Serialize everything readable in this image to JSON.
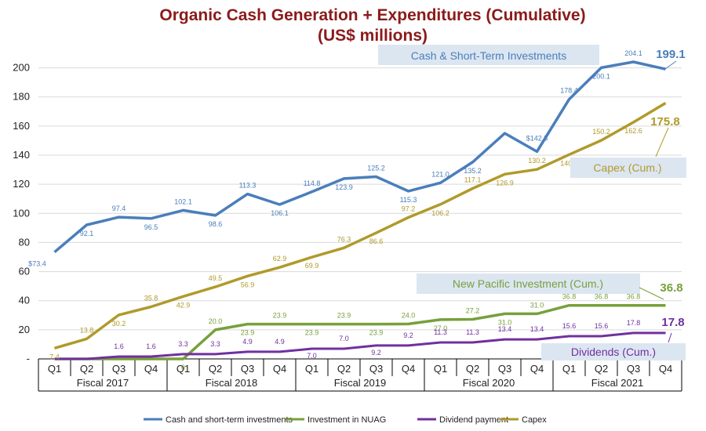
{
  "chart_data": {
    "type": "line",
    "title": "Organic Cash Generation + Expenditures (Cumulative)",
    "subtitle": "(US$ millions)",
    "ylim": [
      0,
      210
    ],
    "yticks": [
      "-",
      "20",
      "40",
      "60",
      "80",
      "100",
      "120",
      "140",
      "160",
      "180",
      "200"
    ],
    "quarters": [
      "Q1",
      "Q2",
      "Q3",
      "Q4",
      "Q1",
      "Q2",
      "Q3",
      "Q4",
      "Q1",
      "Q2",
      "Q3",
      "Q4",
      "Q1",
      "Q2",
      "Q3",
      "Q4",
      "Q1",
      "Q2",
      "Q3",
      "Q4"
    ],
    "fiscal_years": [
      "Fiscal 2017",
      "Fiscal 2018",
      "Fiscal 2019",
      "Fiscal 2020",
      "Fiscal 2021"
    ],
    "series": [
      {
        "name": "Cash and short-term investments",
        "color": "#4a7ebb",
        "values": [
          73.4,
          92.1,
          97.4,
          96.5,
          102.1,
          98.6,
          113.3,
          106.1,
          114.8,
          123.9,
          125.2,
          115.3,
          121.0,
          135.2,
          155.0,
          142.5,
          178.4,
          200.1,
          204.1,
          199.1
        ],
        "labels": [
          "$73.4",
          "92.1",
          "97.4",
          "96.5",
          "102.1",
          "98.6",
          "113.3",
          "106.1",
          "114.8",
          "123.9",
          "125.2",
          "115.3",
          "121.0",
          "135.2",
          "",
          "$142.5",
          "178.4",
          "200.1",
          "204.1",
          ""
        ]
      },
      {
        "name": "Investment in NUAG",
        "color": "#77a03b",
        "values": [
          0,
          0,
          0,
          0,
          0,
          20.0,
          23.9,
          23.9,
          23.9,
          23.9,
          23.9,
          24.0,
          27.0,
          27.2,
          31.0,
          31.0,
          36.8,
          36.8,
          36.8,
          36.8
        ],
        "labels": [
          "",
          "",
          "",
          "",
          "0",
          "20.0",
          "23.9",
          "23.9",
          "23.9",
          "23.9",
          "23.9",
          "24.0",
          "27.0",
          "27.2",
          "31.0",
          "31.0",
          "36.8",
          "36.8",
          "36.8",
          ""
        ]
      },
      {
        "name": "Dividend payment",
        "color": "#7030a0",
        "values": [
          0,
          0,
          1.6,
          1.6,
          3.3,
          3.3,
          4.9,
          4.9,
          7.0,
          7.0,
          9.2,
          9.2,
          11.3,
          11.3,
          13.4,
          13.4,
          15.6,
          15.6,
          17.8,
          17.8
        ],
        "labels": [
          "",
          "",
          "1.6",
          "1.6",
          "3.3",
          "3.3",
          "4.9",
          "4.9",
          "7.0",
          "7.0",
          "9.2",
          "9.2",
          "11.3",
          "11.3",
          "13.4",
          "13.4",
          "15.6",
          "15.6",
          "17.8",
          ""
        ]
      },
      {
        "name": "Capex",
        "color": "#b09a2b",
        "values": [
          7.4,
          13.8,
          30.2,
          35.8,
          42.9,
          49.5,
          56.9,
          62.9,
          69.9,
          76.3,
          86.6,
          97.2,
          106.2,
          117.1,
          126.9,
          130.2,
          140.4,
          150.2,
          162.6,
          175.8
        ],
        "labels": [
          "7.4",
          "13.8",
          "30.2",
          "35.8",
          "42.9",
          "49.5",
          "56.9",
          "62.9",
          "69.9",
          "76.3",
          "86.6",
          "97.2",
          "106.2",
          "117.1",
          "126.9",
          "130.2",
          "140.4",
          "150.2",
          "162.6",
          ""
        ]
      }
    ],
    "annotations": [
      {
        "text": "Cash & Short-Term Investments",
        "final_value": "199.1",
        "series": 0,
        "color": "#4a7ebb"
      },
      {
        "text": "Capex (Cum.)",
        "final_value": "175.8",
        "series": 3,
        "color": "#b09a2b"
      },
      {
        "text": "New Pacific Investment (Cum.)",
        "final_value": "36.8",
        "series": 1,
        "color": "#77a03b"
      },
      {
        "text": "Dividends (Cum.)",
        "final_value": "17.8",
        "series": 2,
        "color": "#7030a0"
      }
    ],
    "legend": {
      "placement": "bottom"
    }
  }
}
